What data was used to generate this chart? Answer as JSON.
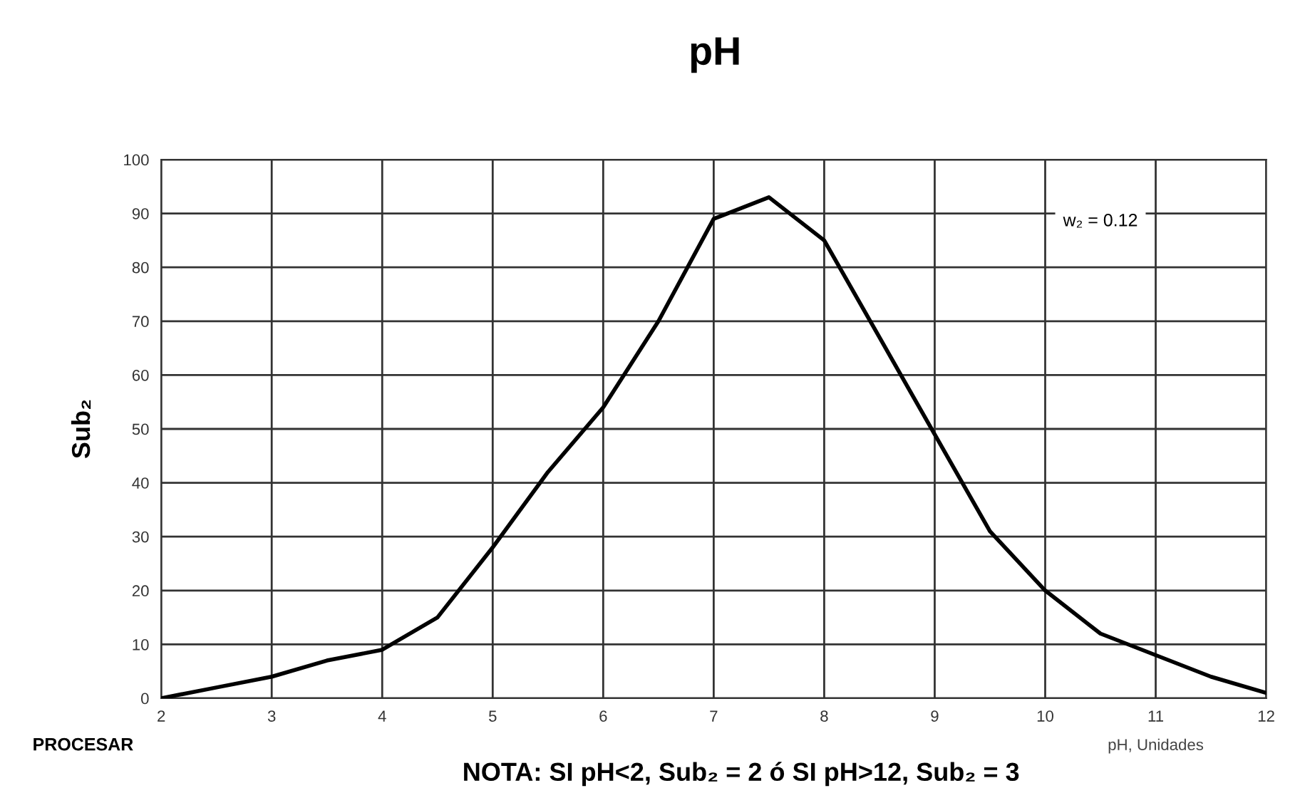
{
  "chart_data": {
    "type": "line",
    "title": "pH",
    "ylabel": "Sub₂",
    "xlabel": "pH, Unidades",
    "x": [
      2,
      2.5,
      3,
      3.5,
      4,
      4.5,
      5,
      5.5,
      6,
      6.5,
      7,
      7.5,
      8,
      8.5,
      9,
      9.5,
      10,
      10.5,
      11,
      11.5,
      12
    ],
    "series": [
      {
        "color": "#000000",
        "values": [
          0,
          2,
          4,
          7,
          9,
          15,
          28,
          42,
          54,
          70,
          89,
          93,
          85,
          67,
          49,
          31,
          20,
          12,
          8,
          4,
          1
        ]
      }
    ],
    "xlim": [
      2,
      12
    ],
    "xticks": [
      2,
      3,
      4,
      5,
      6,
      7,
      8,
      9,
      10,
      11,
      12
    ],
    "ylim": [
      0,
      100
    ],
    "yticks": [
      0,
      10,
      20,
      30,
      40,
      50,
      60,
      70,
      80,
      90,
      100
    ],
    "grid": true,
    "legend": false,
    "line_style": "solid",
    "annotations": [
      "w₂ = 0.12",
      "PROCESAR",
      "NOTA: SI pH<2, Sub₂ = 2 ó SI pH>12, Sub₂ = 3"
    ]
  }
}
